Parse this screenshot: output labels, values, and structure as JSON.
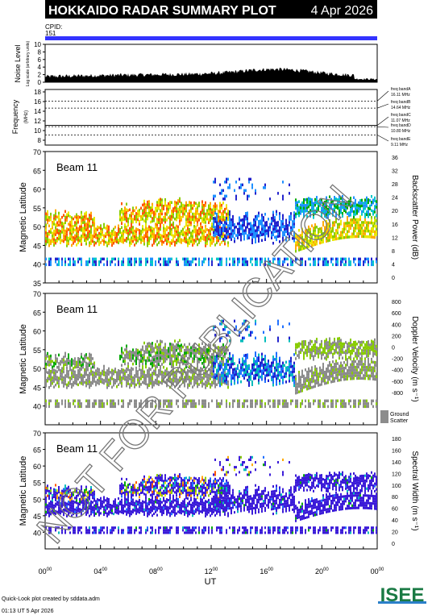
{
  "header": {
    "title": "HOKKAIDO RADAR SUMMARY PLOT",
    "date": "4 Apr 2026",
    "cpid_label": "CPID:",
    "cpid_value": "151"
  },
  "colors": {
    "header_bg": "#000000",
    "cpid_bar": "#3333ff",
    "ground_scatter": "#8c8c8c"
  },
  "x_axis": {
    "label": "UT",
    "ticks": [
      "00",
      "04",
      "08",
      "12",
      "16",
      "20",
      "00"
    ],
    "tick_sup": "00"
  },
  "footer": {
    "line1": "Quick-Look plot created by sddata.adm",
    "line2": "01:13 UT  5 Apr 2026",
    "logo": "ISEE"
  },
  "watermark": "NOT FOR PUBLICATION",
  "noise_panel": {
    "ylabel": "Noise Level",
    "ylabel_small": "Log scale (arbitrary units)",
    "yticks": [
      "0",
      "2",
      "4",
      "6",
      "8",
      "10"
    ]
  },
  "freq_panel": {
    "ylabel": "Frequency",
    "unit": "(MHz)",
    "yticks": [
      "8",
      "10",
      "12",
      "14",
      "16",
      "18"
    ],
    "bands": [
      {
        "name": "freq bandA",
        "value": "16.11 MHz"
      },
      {
        "name": "freq bandB",
        "value": "14.64 MHz"
      },
      {
        "name": "freq bandC",
        "value": "11.07 MHz"
      },
      {
        "name": "freq bandD",
        "value": "10.80 MHz"
      },
      {
        "name": "freq bandE",
        "value": "9.11 MHz"
      }
    ]
  },
  "chart_data": [
    {
      "type": "heatmap",
      "panel": "backscatter-power",
      "title": "Beam 11",
      "ylabel": "Magnetic Latitude",
      "ylim": [
        35,
        70
      ],
      "yticks": [
        "35",
        "40",
        "45",
        "50",
        "55",
        "60",
        "65",
        "70"
      ],
      "colorbar_title": "Backscatter Power (dB)",
      "colorbar_ticks": [
        "0",
        "4",
        "8",
        "12",
        "16",
        "20",
        "24",
        "28",
        "32",
        "36"
      ],
      "colors": [
        "#7a007a",
        "#2222cc",
        "#1e90ff",
        "#00c8c8",
        "#00aa00",
        "#88cc00",
        "#e8e800",
        "#ffaa00",
        "#ff5500",
        "#dd0000"
      ]
    },
    {
      "type": "heatmap",
      "panel": "doppler-velocity",
      "title": "Beam 11",
      "ylabel": "Magnetic Latitude",
      "ylim": [
        35,
        70
      ],
      "yticks": [
        "40",
        "45",
        "50",
        "55",
        "60",
        "65",
        "70"
      ],
      "colorbar_title": "Doppler Velocity (m s⁻¹)",
      "colorbar_ticks": [
        "800",
        "600",
        "400",
        "200",
        "0",
        "-200",
        "-400",
        "-600",
        "-800"
      ],
      "colors": [
        "#2020cc",
        "#1e6fff",
        "#00bbbb",
        "#00aa00",
        "#88cc00",
        "#e8e800",
        "#ffaa00",
        "#ff5500",
        "#dd0000"
      ],
      "ground_scatter_label": [
        "Ground",
        "Scatter"
      ]
    },
    {
      "type": "heatmap",
      "panel": "spectral-width",
      "title": "Beam 11",
      "ylabel": "Magnetic Latitude",
      "ylim": [
        35,
        70
      ],
      "yticks": [
        "40",
        "45",
        "50",
        "55",
        "60",
        "65",
        "70"
      ],
      "colorbar_title": "Spectral Width (m s⁻¹)",
      "colorbar_ticks": [
        "0",
        "20",
        "40",
        "60",
        "80",
        "100",
        "120",
        "140",
        "160",
        "180"
      ],
      "colors": [
        "#3a1ad8",
        "#1e6fff",
        "#00bbbb",
        "#00aa00",
        "#88cc00",
        "#e8e800",
        "#ffaa00",
        "#ff5500",
        "#dd0000"
      ]
    }
  ]
}
